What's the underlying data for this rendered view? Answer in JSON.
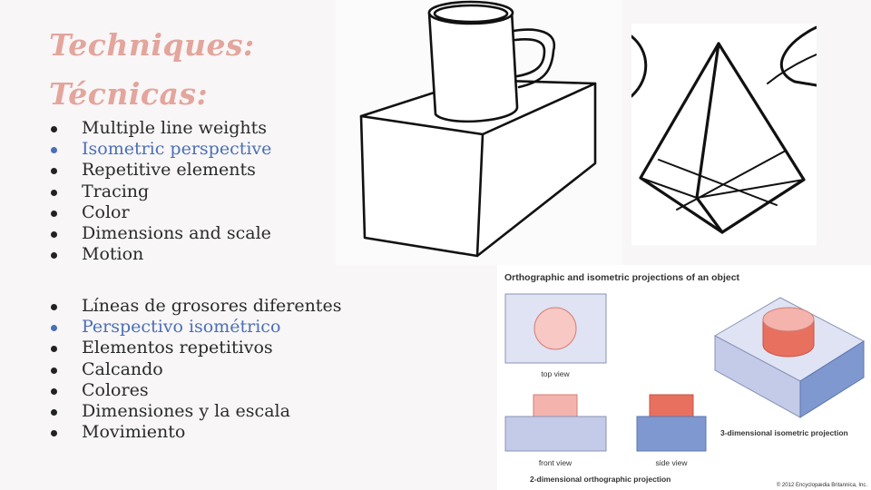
{
  "slide": {
    "title_en": "Techniques:",
    "title_es": "Técnicas:",
    "list_en": [
      {
        "text": "Multiple line weights",
        "highlight": false
      },
      {
        "text": "Isometric perspective",
        "highlight": true
      },
      {
        "text": "Repetitive elements",
        "highlight": false
      },
      {
        "text": "Tracing",
        "highlight": false
      },
      {
        "text": "Color",
        "highlight": false
      },
      {
        "text": "Dimensions and scale",
        "highlight": false
      },
      {
        "text": "Motion",
        "highlight": false
      }
    ],
    "list_es": [
      {
        "text": "Líneas de grosores diferentes",
        "highlight": false
      },
      {
        "text": "Perspectivo isométrico",
        "highlight": true
      },
      {
        "text": "Elementos repetitivos",
        "highlight": false
      },
      {
        "text": "Calcando",
        "highlight": false
      },
      {
        "text": "Colores",
        "highlight": false
      },
      {
        "text": "Dimensiones y la escala",
        "highlight": false
      },
      {
        "text": "Movimiento",
        "highlight": false
      }
    ],
    "colors": {
      "title": "#e3a59c",
      "highlight": "#4a6fb6",
      "text": "#2a2a2a",
      "projection_light_blue": "#c3cbe8",
      "projection_dark_blue": "#7f98cf",
      "projection_pink": "#f4b3ad",
      "projection_red": "#e8705f"
    }
  },
  "ortho": {
    "heading": "Orthographic and isometric projections of an object",
    "top_view": "top view",
    "front_view": "front view",
    "side_view": "side view",
    "iso_label": "3-dimensional isometric projection",
    "ortho_label": "2-dimensional orthographic projection",
    "copyright": "© 2012 Encyclopædia Britannica, Inc."
  }
}
